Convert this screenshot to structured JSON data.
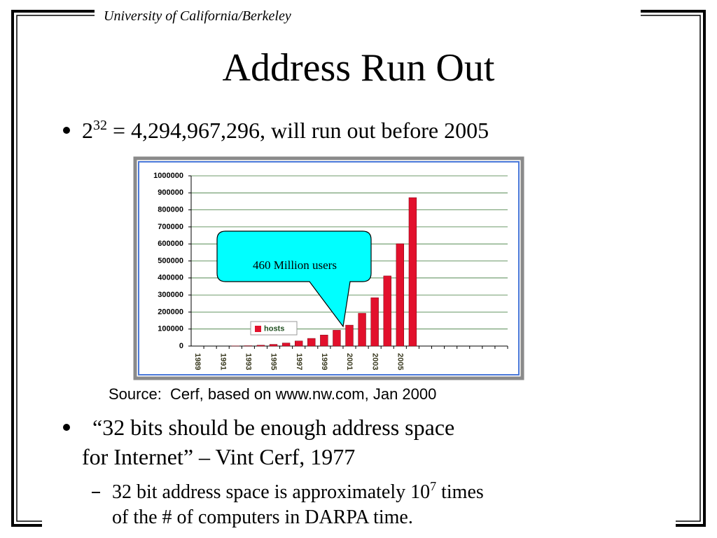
{
  "header": "University of California/Berkeley",
  "title": "Address Run Out",
  "bullet_1": {
    "base": "2",
    "exponent": "32",
    "text": "= 4,294,967,296, will run out before 2005"
  },
  "chart_data": {
    "type": "bar",
    "categories": [
      "1989",
      null,
      "1991",
      null,
      "1993",
      null,
      "1995",
      null,
      "1997",
      null,
      "1999",
      null,
      "2001",
      null,
      "2003",
      null,
      "2005",
      null,
      null,
      null,
      null,
      null,
      null,
      null,
      null
    ],
    "series": [
      {
        "name": "hosts",
        "color": "#e2102c",
        "values": [
          null,
          null,
          null,
          1000,
          2000,
          5000,
          10000,
          18000,
          30000,
          45000,
          65000,
          93000,
          123000,
          193000,
          284000,
          412000,
          601000,
          872000,
          null,
          null,
          null,
          null,
          null,
          null,
          null
        ]
      }
    ],
    "ylim": [
      0,
      1000000
    ],
    "yticks": [
      0,
      100000,
      200000,
      300000,
      400000,
      500000,
      600000,
      700000,
      800000,
      900000,
      1000000
    ],
    "grid": true,
    "annotation": "460 Million users"
  },
  "source": "Source:  Cerf, based on www.nw.com, Jan 2000",
  "bullet_2": {
    "lines": [
      "“32 bits should be enough address space",
      "for Internet” – Vint Cerf, 1977"
    ]
  },
  "sub_bullet": {
    "text": "32 bit address space is approximately 10",
    "exponent": "7",
    "text_after": "times",
    "line_2": "of the # of computers in DARPA time."
  }
}
